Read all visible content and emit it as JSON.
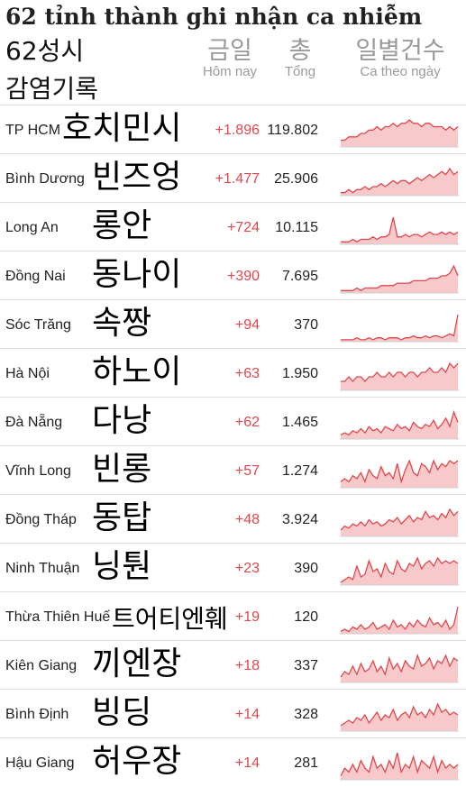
{
  "title": "62 tỉnh thành ghi nhận ca nhiễm",
  "korean_title_1": "62성시",
  "korean_title_2": "감염기록",
  "headers": {
    "today_ko": "금일",
    "today_vi": "Hôm nay",
    "total_ko": "총",
    "total_vi": "Tổng",
    "daily_ko": "일별건수",
    "daily_vi": "Ca theo ngày"
  },
  "colors": {
    "accent": "#e0474c",
    "spark_fill": "#f7c9cb",
    "text": "#222222",
    "muted": "#9a9a9a"
  },
  "chart_data": {
    "type": "table",
    "columns": [
      "Hôm nay",
      "Tổng",
      "Ca theo ngày"
    ],
    "rows": [
      {
        "province": "TP HCM",
        "korean": "호치민시",
        "today": "+1.896",
        "total": "119.802",
        "daily": [
          2,
          2,
          3,
          3,
          3,
          4,
          4,
          5,
          5,
          6,
          5,
          6,
          6,
          7,
          6,
          7,
          7,
          8,
          7,
          7,
          6,
          7,
          7,
          6,
          6,
          6,
          5,
          6,
          5,
          6
        ]
      },
      {
        "province": "Bình Dương",
        "korean": "빈즈엉",
        "today": "+1.477",
        "total": "25.906",
        "daily": [
          1,
          1,
          2,
          1,
          2,
          2,
          3,
          2,
          3,
          3,
          4,
          3,
          4,
          5,
          4,
          5,
          5,
          4,
          5,
          6,
          5,
          6,
          7,
          6,
          7,
          8,
          7,
          9,
          7,
          8
        ]
      },
      {
        "province": "Long An",
        "korean": "롱안",
        "today": "+724",
        "total": "10.115",
        "daily": [
          1,
          1,
          1,
          2,
          1,
          2,
          2,
          2,
          3,
          2,
          3,
          3,
          4,
          11,
          3,
          3,
          4,
          3,
          4,
          4,
          3,
          4,
          5,
          4,
          4,
          5,
          4,
          5,
          4,
          5
        ]
      },
      {
        "province": "Đồng Nai",
        "korean": "동나이",
        "today": "+390",
        "total": "7.695",
        "daily": [
          1,
          1,
          1,
          1,
          2,
          1,
          2,
          2,
          2,
          2,
          3,
          3,
          3,
          3,
          4,
          4,
          4,
          4,
          5,
          5,
          5,
          5,
          6,
          6,
          6,
          7,
          7,
          8,
          11,
          7
        ]
      },
      {
        "province": "Sóc Trăng",
        "korean": "속짱",
        "today": "+94",
        "total": "370",
        "daily": [
          1,
          1,
          1,
          1,
          2,
          1,
          1,
          2,
          1,
          2,
          2,
          1,
          2,
          2,
          2,
          1,
          2,
          2,
          3,
          2,
          2,
          3,
          2,
          3,
          3,
          2,
          3,
          4,
          3,
          14
        ]
      },
      {
        "province": "Hà Nội",
        "korean": "하노이",
        "today": "+63",
        "total": "1.950",
        "daily": [
          2,
          2,
          3,
          2,
          3,
          3,
          2,
          3,
          3,
          4,
          3,
          3,
          4,
          3,
          4,
          4,
          3,
          4,
          4,
          3,
          4,
          4,
          5,
          4,
          4,
          5,
          4,
          6,
          5,
          6
        ]
      },
      {
        "province": "Đà Nẵng",
        "korean": "다낭",
        "today": "+62",
        "total": "1.465",
        "daily": [
          2,
          3,
          2,
          4,
          3,
          5,
          3,
          6,
          4,
          5,
          3,
          6,
          5,
          4,
          7,
          5,
          6,
          4,
          8,
          6,
          5,
          7,
          6,
          9,
          5,
          7,
          10,
          6,
          13,
          8
        ]
      },
      {
        "province": "Vĩnh Long",
        "korean": "빈롱",
        "today": "+57",
        "total": "1.274",
        "daily": [
          2,
          3,
          2,
          4,
          3,
          5,
          2,
          6,
          4,
          3,
          7,
          4,
          5,
          3,
          8,
          2,
          6,
          9,
          5,
          4,
          8,
          7,
          5,
          9,
          6,
          8,
          7,
          9,
          8,
          9
        ]
      },
      {
        "province": "Đồng Tháp",
        "korean": "동탑",
        "today": "+48",
        "total": "3.924",
        "daily": [
          3,
          5,
          4,
          6,
          5,
          7,
          5,
          8,
          6,
          7,
          5,
          6,
          8,
          7,
          9,
          6,
          8,
          10,
          7,
          9,
          8,
          12,
          9,
          10,
          8,
          11,
          9,
          13,
          10,
          12
        ]
      },
      {
        "province": "Ninh Thuận",
        "korean": "닝퉌",
        "today": "+23",
        "total": "390",
        "daily": [
          1,
          2,
          3,
          2,
          7,
          3,
          4,
          9,
          5,
          6,
          3,
          8,
          5,
          4,
          9,
          6,
          5,
          8,
          7,
          10,
          6,
          8,
          9,
          7,
          10,
          8,
          9,
          8,
          9,
          8
        ]
      },
      {
        "province": "Thừa Thiên Huế",
        "korean": "트어티엔훼",
        "today": "+19",
        "total": "120",
        "daily": [
          1,
          2,
          1,
          3,
          2,
          4,
          2,
          3,
          5,
          2,
          3,
          4,
          2,
          6,
          3,
          4,
          2,
          5,
          3,
          6,
          4,
          3,
          7,
          4,
          5,
          3,
          6,
          2,
          4,
          12
        ]
      },
      {
        "province": "Kiên Giang",
        "korean": "끼엔장",
        "today": "+18",
        "total": "337",
        "daily": [
          2,
          4,
          3,
          6,
          3,
          7,
          4,
          5,
          8,
          4,
          6,
          3,
          9,
          5,
          7,
          4,
          8,
          6,
          5,
          10,
          6,
          7,
          9,
          5,
          8,
          7,
          10,
          6,
          9,
          8
        ]
      },
      {
        "province": "Bình Định",
        "korean": "빙딩",
        "today": "+14",
        "total": "328",
        "daily": [
          2,
          3,
          4,
          3,
          5,
          4,
          6,
          3,
          5,
          7,
          4,
          6,
          5,
          8,
          4,
          6,
          7,
          5,
          9,
          6,
          7,
          5,
          8,
          6,
          10,
          7,
          8,
          6,
          7,
          6
        ]
      },
      {
        "province": "Hậu Giang",
        "korean": "허우장",
        "today": "+14",
        "total": "281",
        "daily": [
          1,
          3,
          2,
          4,
          2,
          5,
          3,
          2,
          6,
          3,
          4,
          2,
          5,
          3,
          7,
          2,
          4,
          3,
          6,
          2,
          5,
          4,
          3,
          6,
          2,
          5,
          3,
          4,
          3,
          4
        ]
      }
    ]
  }
}
